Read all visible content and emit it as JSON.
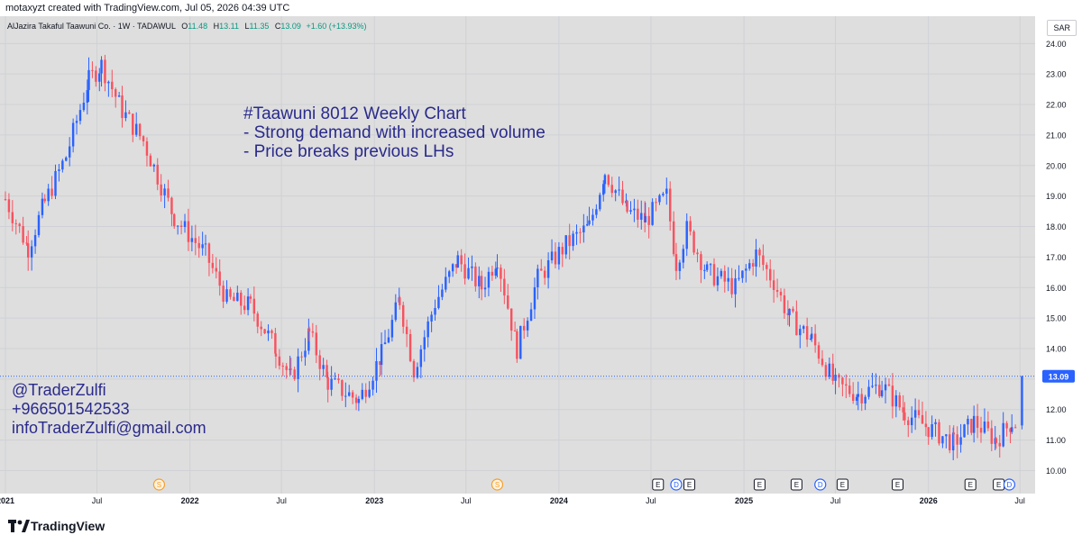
{
  "header": {
    "created_text": "motaxyzt created with TradingView.com, Jul 05, 2026 04:39 UTC"
  },
  "legend": {
    "symbol": "AlJazira Takaful Taawuni Co. · 1W · TADAWUL",
    "open_label": "O",
    "open": "11.48",
    "high_label": "H",
    "high": "13.11",
    "low_label": "L",
    "low": "11.35",
    "close_label": "C",
    "close": "13.09",
    "change": "+1.60 (+13.93%)"
  },
  "currency_button": "SAR",
  "annotation": {
    "line1": "#Taawuni 8012 Weekly Chart",
    "line2": "- Strong demand with increased volume",
    "line3": "- Price breaks previous LHs"
  },
  "contact": {
    "handle": "@TraderZulfi",
    "phone": "+966501542533",
    "email": "infoTraderZulfi@gmail.com"
  },
  "footer": {
    "brand": "TradingView"
  },
  "colors": {
    "up": "#2962ff",
    "down": "#f7525f",
    "last_price": "#2962ff",
    "annotation": "#2a2a8c"
  },
  "chart_data": {
    "type": "candlestick",
    "timeframe": "1W",
    "ylim": [
      9.6,
      24.6
    ],
    "xlim": [
      "2021-01-01",
      "2026-07-31"
    ],
    "y_ticks": [
      "10.00",
      "11.00",
      "12.00",
      "13.00",
      "14.00",
      "15.00",
      "16.00",
      "17.00",
      "18.00",
      "19.00",
      "20.00",
      "21.00",
      "22.00",
      "23.00",
      "24.00"
    ],
    "x_ticks": [
      {
        "label": "2021",
        "date": "2021-01-01"
      },
      {
        "label": "Jul",
        "date": "2021-07-01"
      },
      {
        "label": "2022",
        "date": "2022-01-01"
      },
      {
        "label": "Jul",
        "date": "2022-07-01"
      },
      {
        "label": "2023",
        "date": "2023-01-01"
      },
      {
        "label": "Jul",
        "date": "2023-07-01"
      },
      {
        "label": "2024",
        "date": "2024-01-01"
      },
      {
        "label": "Jul",
        "date": "2024-07-01"
      },
      {
        "label": "2025",
        "date": "2025-01-01"
      },
      {
        "label": "Jul",
        "date": "2025-07-01"
      },
      {
        "label": "2026",
        "date": "2026-01-01"
      },
      {
        "label": "Jul",
        "date": "2026-07-01"
      }
    ],
    "last_price": {
      "value": 13.09,
      "label": "13.09"
    },
    "waypoints": [
      {
        "date": "2021-01-01",
        "close": 18.9
      },
      {
        "date": "2021-02-15",
        "close": 17.3
      },
      {
        "date": "2021-03-20",
        "close": 18.8
      },
      {
        "date": "2021-05-01",
        "close": 20.3
      },
      {
        "date": "2021-06-15",
        "close": 22.8
      },
      {
        "date": "2021-07-10",
        "close": 23.3
      },
      {
        "date": "2021-08-20",
        "close": 21.8
      },
      {
        "date": "2021-10-01",
        "close": 20.8
      },
      {
        "date": "2021-12-01",
        "close": 18.3
      },
      {
        "date": "2022-02-01",
        "close": 17.1
      },
      {
        "date": "2022-03-15",
        "close": 15.6
      },
      {
        "date": "2022-05-01",
        "close": 15.4
      },
      {
        "date": "2022-06-20",
        "close": 14.0
      },
      {
        "date": "2022-07-20",
        "close": 13.0
      },
      {
        "date": "2022-08-25",
        "close": 14.5
      },
      {
        "date": "2022-10-01",
        "close": 12.9
      },
      {
        "date": "2022-12-01",
        "close": 12.3
      },
      {
        "date": "2023-01-15",
        "close": 13.8
      },
      {
        "date": "2023-02-20",
        "close": 15.6
      },
      {
        "date": "2023-03-20",
        "close": 13.3
      },
      {
        "date": "2023-05-01",
        "close": 15.5
      },
      {
        "date": "2023-06-15",
        "close": 16.9
      },
      {
        "date": "2023-08-01",
        "close": 16.0
      },
      {
        "date": "2023-09-01",
        "close": 17.0
      },
      {
        "date": "2023-10-10",
        "close": 14.0
      },
      {
        "date": "2023-11-20",
        "close": 16.3
      },
      {
        "date": "2024-01-15",
        "close": 17.4
      },
      {
        "date": "2024-03-01",
        "close": 18.0
      },
      {
        "date": "2024-04-01",
        "close": 19.8
      },
      {
        "date": "2024-05-15",
        "close": 18.5
      },
      {
        "date": "2024-06-20",
        "close": 18.2
      },
      {
        "date": "2024-08-01",
        "close": 19.0
      },
      {
        "date": "2024-08-20",
        "close": 16.8
      },
      {
        "date": "2024-09-10",
        "close": 17.9
      },
      {
        "date": "2024-10-20",
        "close": 16.5
      },
      {
        "date": "2024-12-15",
        "close": 16.0
      },
      {
        "date": "2025-01-25",
        "close": 17.1
      },
      {
        "date": "2025-03-01",
        "close": 16.2
      },
      {
        "date": "2025-04-01",
        "close": 15.0
      },
      {
        "date": "2025-05-15",
        "close": 14.3
      },
      {
        "date": "2025-07-01",
        "close": 12.8
      },
      {
        "date": "2025-08-15",
        "close": 12.5
      },
      {
        "date": "2025-10-01",
        "close": 12.8
      },
      {
        "date": "2025-11-15",
        "close": 11.9
      },
      {
        "date": "2026-01-01",
        "close": 11.4
      },
      {
        "date": "2026-02-20",
        "close": 10.9
      },
      {
        "date": "2026-04-01",
        "close": 11.6
      },
      {
        "date": "2026-05-15",
        "close": 11.0
      },
      {
        "date": "2026-06-15",
        "close": 11.6
      },
      {
        "date": "2026-06-28",
        "close": 11.48
      }
    ],
    "last_candle": {
      "date": "2026-07-05",
      "open": 11.48,
      "high": 13.11,
      "low": 11.35,
      "close": 13.09
    },
    "events": [
      {
        "type": "S",
        "label": "S",
        "date": "2021-11-01"
      },
      {
        "type": "S",
        "label": "S",
        "date": "2023-09-01"
      },
      {
        "type": "E",
        "label": "E",
        "date": "2024-07-15"
      },
      {
        "type": "D",
        "label": "D",
        "date": "2024-08-20"
      },
      {
        "type": "E",
        "label": "E",
        "date": "2024-09-15"
      },
      {
        "type": "E",
        "label": "E",
        "date": "2025-02-01"
      },
      {
        "type": "E",
        "label": "E",
        "date": "2025-04-15"
      },
      {
        "type": "D",
        "label": "D",
        "date": "2025-06-01"
      },
      {
        "type": "E",
        "label": "E",
        "date": "2025-07-15"
      },
      {
        "type": "E",
        "label": "E",
        "date": "2025-11-01"
      },
      {
        "type": "E",
        "label": "E",
        "date": "2026-03-25"
      },
      {
        "type": "E",
        "label": "E",
        "date": "2026-05-20"
      },
      {
        "type": "D",
        "label": "D",
        "date": "2026-06-10"
      }
    ]
  }
}
